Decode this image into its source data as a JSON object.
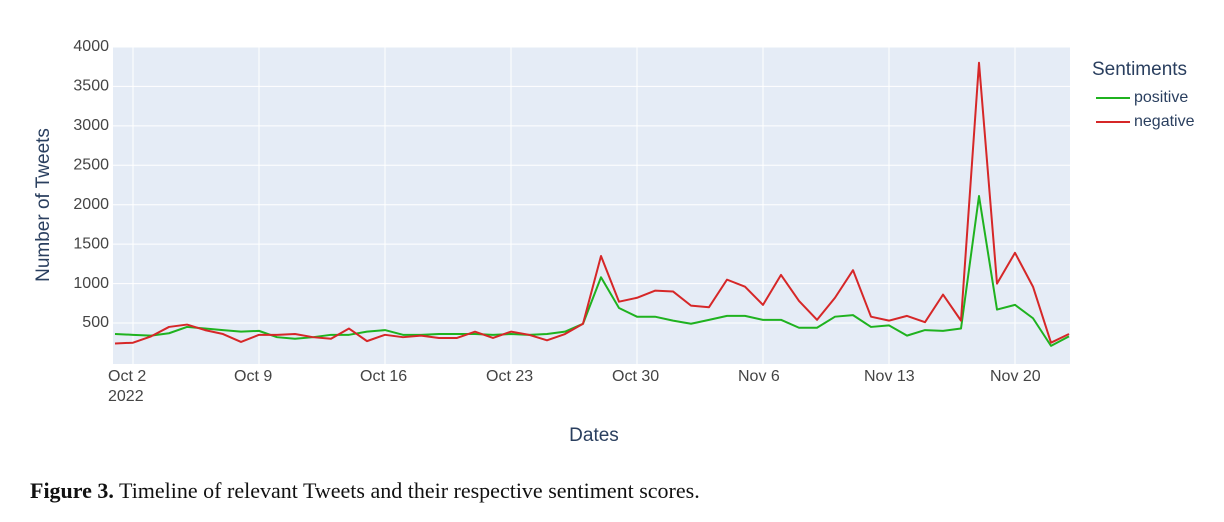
{
  "chart_data": {
    "type": "line",
    "x_label": "Dates",
    "y_label": "Number of Tweets",
    "legend_title": "Sentiments",
    "legend": "top-right",
    "grid": true,
    "x": [
      "2022-10-01",
      "2022-10-02",
      "2022-10-03",
      "2022-10-04",
      "2022-10-05",
      "2022-10-06",
      "2022-10-07",
      "2022-10-08",
      "2022-10-09",
      "2022-10-10",
      "2022-10-11",
      "2022-10-12",
      "2022-10-13",
      "2022-10-14",
      "2022-10-15",
      "2022-10-16",
      "2022-10-17",
      "2022-10-18",
      "2022-10-19",
      "2022-10-20",
      "2022-10-21",
      "2022-10-22",
      "2022-10-23",
      "2022-10-24",
      "2022-10-25",
      "2022-10-26",
      "2022-10-27",
      "2022-10-28",
      "2022-10-29",
      "2022-10-30",
      "2022-10-31",
      "2022-11-01",
      "2022-11-02",
      "2022-11-03",
      "2022-11-04",
      "2022-11-05",
      "2022-11-06",
      "2022-11-07",
      "2022-11-08",
      "2022-11-09",
      "2022-11-10",
      "2022-11-11",
      "2022-11-12",
      "2022-11-13",
      "2022-11-14",
      "2022-11-15",
      "2022-11-16",
      "2022-11-17",
      "2022-11-18",
      "2022-11-19",
      "2022-11-20",
      "2022-11-21",
      "2022-11-22",
      "2022-11-23"
    ],
    "series": [
      {
        "name": "positive",
        "color": "#1fb21f",
        "values": [
          360,
          350,
          340,
          370,
          450,
          430,
          410,
          390,
          400,
          320,
          300,
          320,
          350,
          350,
          390,
          410,
          350,
          350,
          360,
          360,
          360,
          350,
          360,
          350,
          360,
          390,
          490,
          1080,
          690,
          580,
          580,
          530,
          490,
          540,
          590,
          590,
          540,
          540,
          440,
          440,
          580,
          600,
          450,
          470,
          340,
          410,
          400,
          430,
          2110,
          670,
          730,
          560,
          210,
          330
        ]
      },
      {
        "name": "negative",
        "color": "#d62728",
        "values": [
          240,
          250,
          330,
          450,
          480,
          410,
          360,
          260,
          350,
          350,
          360,
          320,
          300,
          430,
          270,
          350,
          320,
          340,
          310,
          310,
          390,
          310,
          390,
          350,
          280,
          360,
          490,
          1350,
          770,
          820,
          910,
          900,
          720,
          700,
          1050,
          960,
          730,
          1110,
          780,
          540,
          820,
          1170,
          580,
          530,
          590,
          510,
          860,
          530,
          3800,
          1000,
          1390,
          960,
          250,
          360
        ]
      }
    ],
    "xlim": [
      "2022-10-01",
      "2022-11-23"
    ],
    "xticks": [
      {
        "value": "2022-10-02",
        "label": "Oct 2\n2022"
      },
      {
        "value": "2022-10-09",
        "label": "Oct 9"
      },
      {
        "value": "2022-10-16",
        "label": "Oct 16"
      },
      {
        "value": "2022-10-23",
        "label": "Oct 23"
      },
      {
        "value": "2022-10-30",
        "label": "Oct 30"
      },
      {
        "value": "2022-11-06",
        "label": "Nov 6"
      },
      {
        "value": "2022-11-13",
        "label": "Nov 13"
      },
      {
        "value": "2022-11-20",
        "label": "Nov 20"
      }
    ],
    "ylim": [
      -20,
      4000
    ],
    "yticks": [
      500,
      1000,
      1500,
      2000,
      2500,
      3000,
      3500,
      4000
    ]
  },
  "caption_label": "Figure 3.",
  "caption": "Timeline of relevant Tweets and their respective sentiment scores."
}
